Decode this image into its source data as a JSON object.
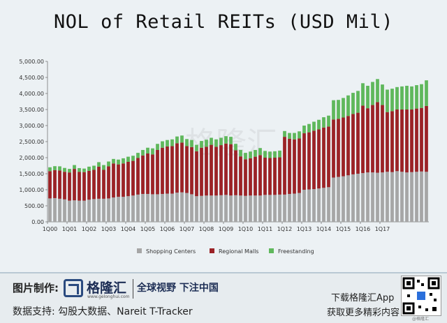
{
  "title": "NOL of Retail REITs (USD Mil)",
  "watermark": "格隆汇",
  "colors": {
    "shopping_centers": "#a6a6a6",
    "regional_malls": "#9b2226",
    "freestanding": "#5fb85c"
  },
  "chart_data": {
    "type": "bar",
    "stacked": true,
    "title": "NOL of Retail REITs (USD Mil)",
    "xlabel": "",
    "ylabel": "",
    "ylim": [
      0,
      5000
    ],
    "yticks": [
      "0.00",
      "500.00",
      "1,000.00",
      "1,500.00",
      "2,000.00",
      "2,500.00",
      "3,000.00",
      "3,500.00",
      "4,000.00",
      "4,500.00",
      "5,000.00"
    ],
    "xtick_labels": [
      "1Q00",
      "1Q01",
      "1Q02",
      "1Q03",
      "1Q04",
      "1Q05",
      "1Q06",
      "1Q07",
      "1Q08",
      "1Q09",
      "1Q10",
      "1Q11",
      "1Q12",
      "1Q13",
      "1Q14",
      "1Q15",
      "1Q16",
      "1Q17"
    ],
    "legend_position": "bottom",
    "series": [
      {
        "name": "Shopping Centers",
        "values": [
          730,
          740,
          720,
          700,
          660,
          670,
          660,
          660,
          690,
          710,
          720,
          720,
          730,
          760,
          780,
          780,
          800,
          820,
          850,
          870,
          870,
          860,
          860,
          870,
          880,
          880,
          910,
          920,
          900,
          860,
          800,
          810,
          820,
          820,
          820,
          830,
          840,
          820,
          830,
          820,
          810,
          820,
          820,
          820,
          840,
          840,
          840,
          850,
          850,
          870,
          880,
          900,
          1000,
          1010,
          1020,
          1040,
          1060,
          1080,
          1380,
          1400,
          1420,
          1450,
          1480,
          1500,
          1520,
          1540,
          1540,
          1530,
          1540,
          1560,
          1550,
          1580,
          1560,
          1540,
          1550,
          1560,
          1570,
          1560
        ]
      },
      {
        "name": "Regional Malls",
        "values": [
          850,
          870,
          880,
          860,
          880,
          980,
          900,
          890,
          900,
          910,
          1000,
          900,
          1000,
          1060,
          1010,
          1040,
          1070,
          1080,
          1140,
          1200,
          1260,
          1240,
          1380,
          1440,
          1470,
          1480,
          1540,
          1550,
          1460,
          1470,
          1400,
          1500,
          1520,
          1580,
          1520,
          1560,
          1600,
          1600,
          1400,
          1220,
          1140,
          1160,
          1210,
          1260,
          1160,
          1150,
          1160,
          1160,
          1800,
          1720,
          1690,
          1700,
          1760,
          1780,
          1820,
          1840,
          1880,
          1890,
          1810,
          1810,
          1830,
          1850,
          1880,
          1900,
          2100,
          2000,
          2100,
          2200,
          2100,
          1860,
          1900,
          1920,
          1940,
          1960,
          1950,
          1970,
          1980,
          2050
        ]
      },
      {
        "name": "Freestanding",
        "values": [
          120,
          125,
          130,
          120,
          110,
          120,
          115,
          110,
          130,
          130,
          140,
          150,
          150,
          140,
          150,
          160,
          160,
          160,
          160,
          170,
          180,
          190,
          190,
          200,
          200,
          210,
          210,
          220,
          220,
          220,
          200,
          210,
          220,
          220,
          230,
          230,
          230,
          230,
          200,
          200,
          200,
          210,
          210,
          220,
          210,
          200,
          200,
          210,
          180,
          180,
          200,
          220,
          240,
          260,
          280,
          300,
          320,
          340,
          600,
          590,
          610,
          640,
          660,
          680,
          700,
          700,
          720,
          720,
          640,
          700,
          700,
          700,
          720,
          740,
          720,
          730,
          740,
          800
        ]
      }
    ]
  },
  "legend": [
    "Shopping Centers",
    "Regional Malls",
    "Freestanding"
  ],
  "footer": {
    "made_by_label": "图片制作:",
    "brand_name": "格隆汇",
    "brand_site": "www.gelonghui.com",
    "slogan": "全球视野 下注中国",
    "source_label": "数据支持: 勾股大数据、Nareit T-Tracker",
    "download_line1": "下载格隆汇App",
    "download_line2": "获取更多精彩内容",
    "corner_mark": "@格隆汇"
  }
}
